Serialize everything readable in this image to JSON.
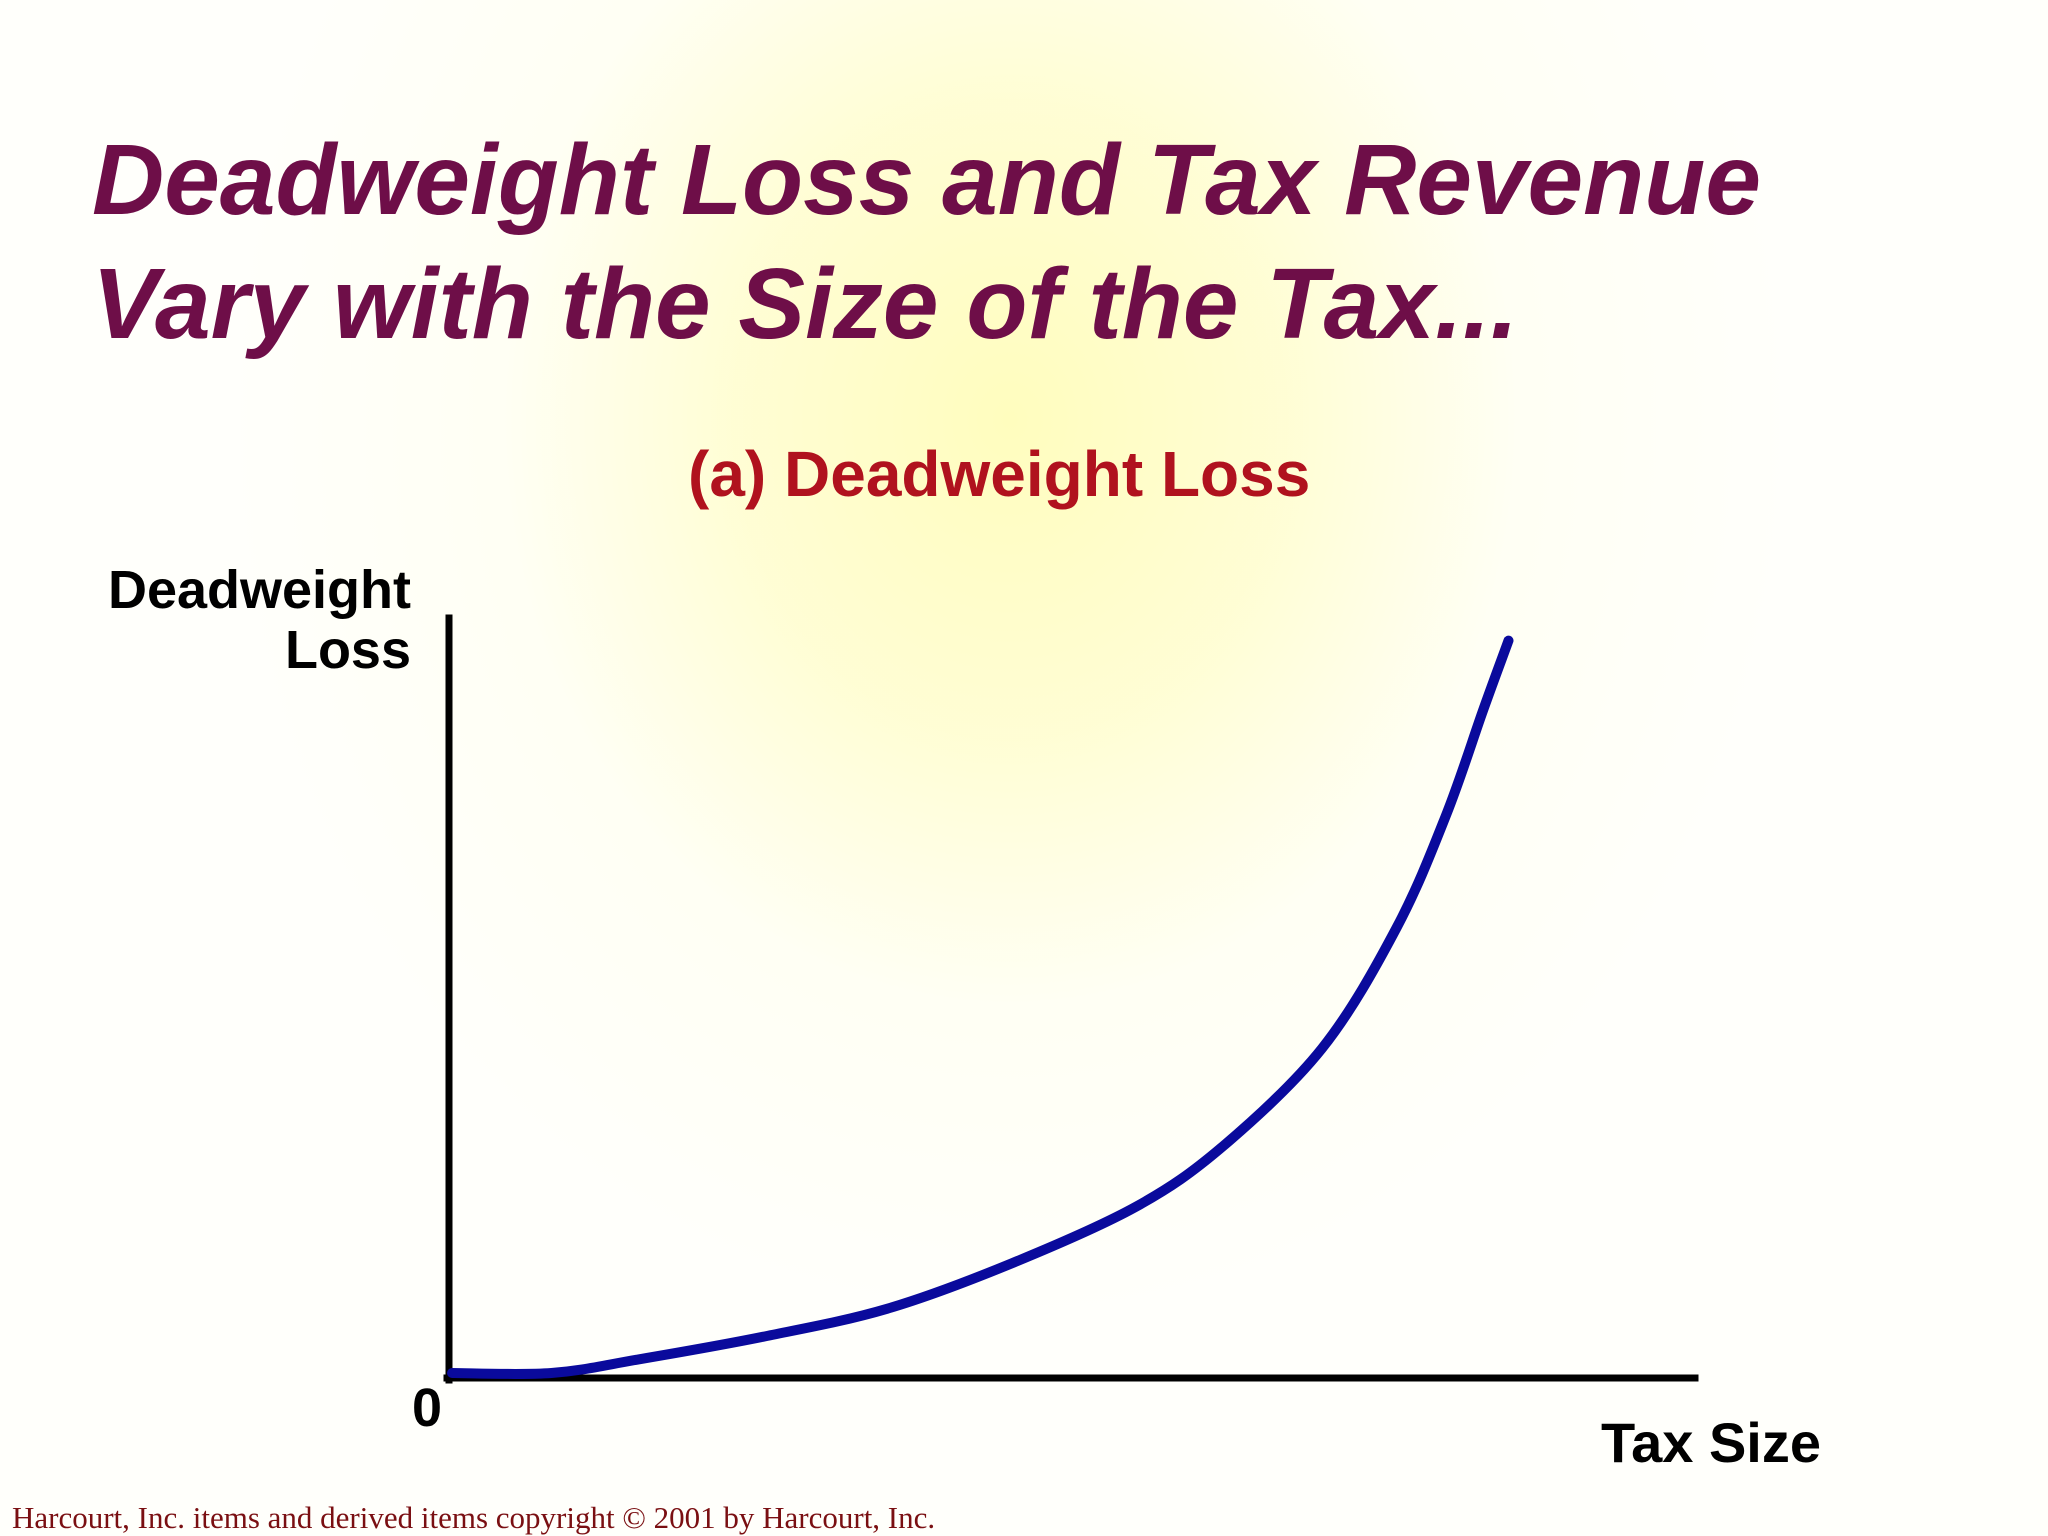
{
  "slide": {
    "title_line1": "Deadweight Loss and Tax Revenue",
    "title_line2": "Vary with the Size of the Tax...",
    "copyright": "Harcourt, Inc. items and derived items copyright © 2001 by Harcourt, Inc."
  },
  "colors": {
    "title": "#6e0e48",
    "panel_title": "#b0121e",
    "curve": "#0a0a9c",
    "axes": "#000000",
    "background_glow": "#fffdbe"
  },
  "chart_data": {
    "type": "line",
    "title": "(a) Deadweight Loss",
    "xlabel": "Tax Size",
    "ylabel_line1": "Deadweight",
    "ylabel_line2": "Loss",
    "origin_label": "0",
    "ticks_shown": false,
    "grid": false,
    "xlim": [
      0,
      1
    ],
    "ylim": [
      0,
      1
    ],
    "series": [
      {
        "x": [
          0.0,
          0.08,
          0.15,
          0.25,
          0.35,
          0.45,
          0.55,
          0.62,
          0.7,
          0.76,
          0.8,
          0.83,
          0.85
        ],
        "y": [
          0.0,
          0.0,
          0.018,
          0.048,
          0.085,
          0.145,
          0.22,
          0.3,
          0.43,
          0.59,
          0.74,
          0.88,
          0.97
        ]
      }
    ]
  }
}
